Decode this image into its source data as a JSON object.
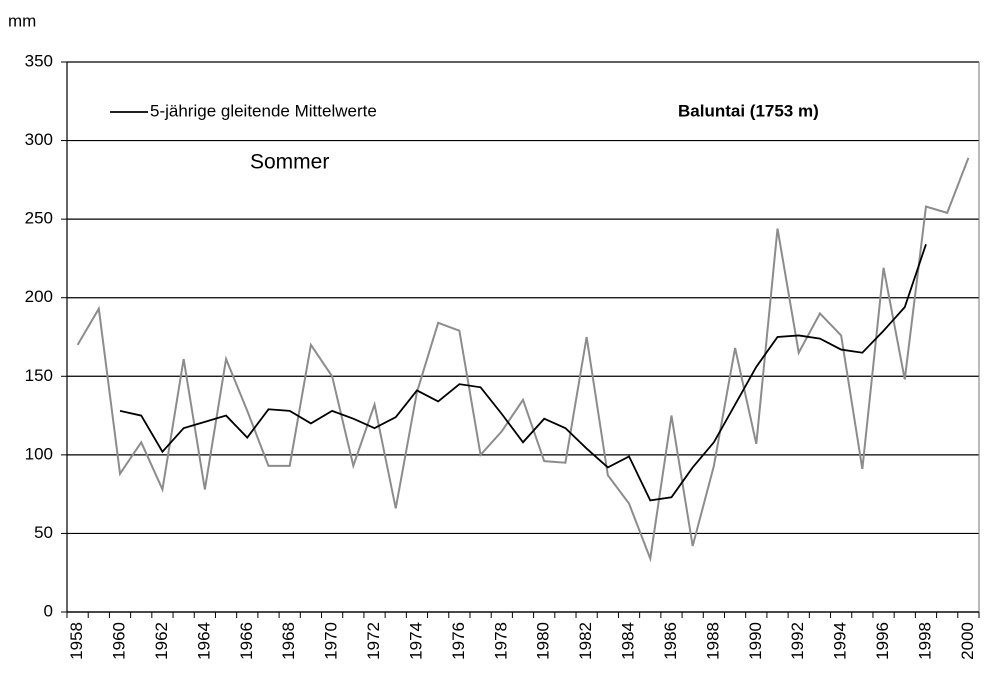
{
  "chart_data": {
    "type": "line",
    "y_label": "mm",
    "annotations": [
      "Baluntai (1753 m)",
      "Sommer"
    ],
    "categories": [
      "1958",
      null,
      "1960",
      null,
      "1962",
      null,
      "1964",
      null,
      "1966",
      null,
      "1968",
      null,
      "1970",
      null,
      "1972",
      null,
      "1974",
      null,
      "1976",
      null,
      "1978",
      null,
      "1980",
      null,
      "1982",
      null,
      "1984",
      null,
      "1986",
      null,
      "1988",
      null,
      "1990",
      null,
      "1992",
      null,
      "1994",
      null,
      "1996",
      null,
      "1998",
      null,
      "2000"
    ],
    "series": [
      {
        "color": "#8c8c8c",
        "values": [
          170,
          193,
          88,
          108,
          78,
          161,
          78,
          161,
          128,
          93,
          93,
          170,
          150,
          93,
          132,
          66,
          140,
          184,
          179,
          100,
          115,
          135,
          96,
          95,
          175,
          87,
          69,
          34,
          125,
          42,
          93,
          168,
          107,
          244,
          165,
          190,
          176,
          91,
          219,
          148,
          258,
          254,
          289
        ]
      },
      {
        "name": "5-jährige gleitende Mittelwerte",
        "color": "#000000",
        "values": [
          null,
          null,
          128,
          125,
          102,
          117,
          121,
          125,
          111,
          129,
          128,
          120,
          128,
          123,
          117,
          124,
          141,
          134,
          145,
          143,
          126,
          108,
          123,
          117,
          104,
          92,
          99,
          71,
          73,
          92,
          108,
          132,
          156,
          175,
          176,
          174,
          167,
          165,
          179,
          194,
          234,
          null,
          null
        ]
      }
    ],
    "ylim": [
      0,
      350
    ],
    "yticks": [
      0,
      50,
      100,
      150,
      200,
      250,
      300,
      350
    ],
    "grid": true
  }
}
